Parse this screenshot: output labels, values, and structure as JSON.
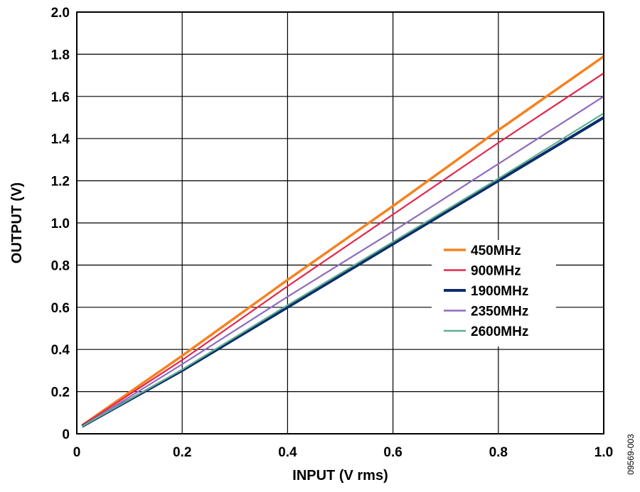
{
  "figure_id": "09569-003",
  "chart_data": {
    "type": "line",
    "xlabel": "INPUT (V rms)",
    "ylabel": "OUTPUT (V)",
    "xlim": [
      0,
      1.0
    ],
    "ylim": [
      0,
      2.0
    ],
    "x_ticks": [
      "0",
      "0.2",
      "0.4",
      "0.6",
      "0.8",
      "1.0"
    ],
    "y_ticks": [
      "0",
      "0.2",
      "0.4",
      "0.6",
      "0.8",
      "1.0",
      "1.2",
      "1.4",
      "1.6",
      "1.8",
      "2.0"
    ],
    "grid": true,
    "legend_position": "center-right",
    "series": [
      {
        "name": "450MHz",
        "color": "#f58220",
        "x": [
          0.01,
          0.2,
          0.4,
          0.6,
          0.8,
          1.0
        ],
        "y": [
          0.04,
          0.37,
          0.73,
          1.08,
          1.44,
          1.79
        ]
      },
      {
        "name": "900MHz",
        "color": "#e3264b",
        "x": [
          0.01,
          0.2,
          0.4,
          0.6,
          0.8,
          1.0
        ],
        "y": [
          0.04,
          0.35,
          0.7,
          1.04,
          1.38,
          1.71
        ]
      },
      {
        "name": "1900MHz",
        "color": "#0c2d6b",
        "x": [
          0.01,
          0.2,
          0.4,
          0.6,
          0.8,
          1.0
        ],
        "y": [
          0.035,
          0.3,
          0.6,
          0.9,
          1.2,
          1.5
        ]
      },
      {
        "name": "2350MHz",
        "color": "#8e6bbf",
        "x": [
          0.01,
          0.2,
          0.4,
          0.6,
          0.8,
          1.0
        ],
        "y": [
          0.035,
          0.33,
          0.65,
          0.96,
          1.28,
          1.6
        ]
      },
      {
        "name": "2600MHz",
        "color": "#5fae93",
        "x": [
          0.01,
          0.2,
          0.4,
          0.6,
          0.8,
          1.0
        ],
        "y": [
          0.035,
          0.305,
          0.61,
          0.91,
          1.21,
          1.52
        ]
      }
    ]
  }
}
